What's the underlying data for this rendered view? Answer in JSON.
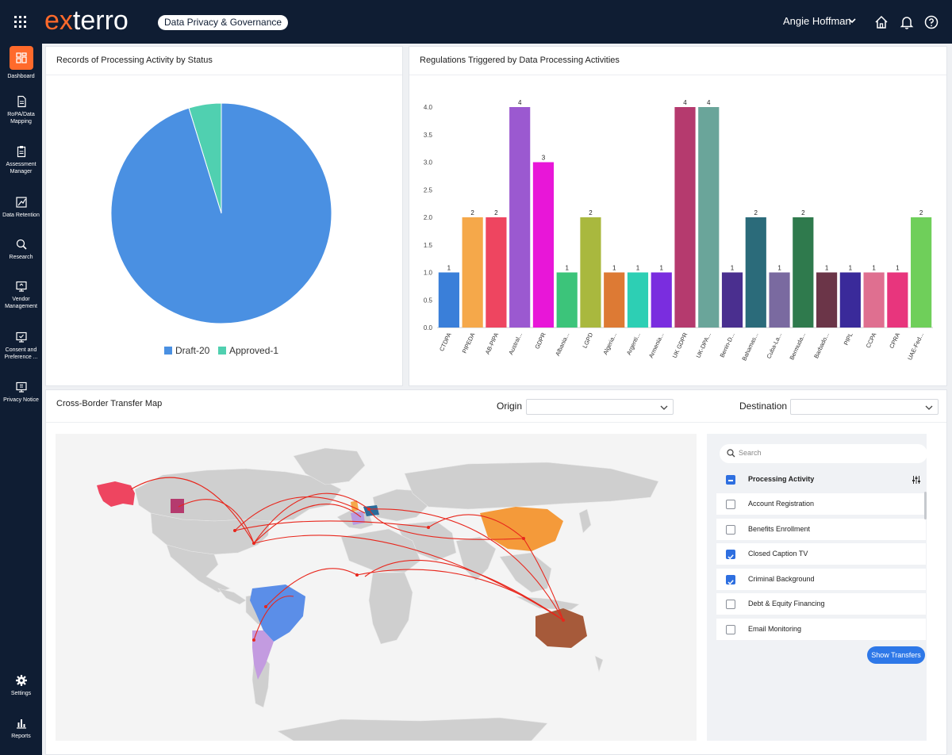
{
  "app": {
    "logo_ex": "ex",
    "logo_rest": "terro",
    "product": "Data Privacy & Governance",
    "user": "Angie Hoffman"
  },
  "sidebar": {
    "items": [
      {
        "label": "Dashboard",
        "icon": "dashboard-icon"
      },
      {
        "label": "RoPA/Data Mapping",
        "icon": "document-icon"
      },
      {
        "label": "Assessment Manager",
        "icon": "clipboard-icon"
      },
      {
        "label": "Data Retention",
        "icon": "retention-icon"
      },
      {
        "label": "Research",
        "icon": "research-icon"
      },
      {
        "label": "Vendor Management",
        "icon": "vendor-icon"
      },
      {
        "label": "Consent and Preference ...",
        "icon": "consent-icon"
      },
      {
        "label": "Privacy Notice",
        "icon": "notice-icon"
      },
      {
        "label": "Settings",
        "icon": "gear-icon"
      },
      {
        "label": "Reports",
        "icon": "bar-chart-icon"
      }
    ],
    "active_color": "#ff6a2b"
  },
  "pie_panel": {
    "title": "Records of Processing Activity by Status",
    "legend": [
      {
        "label": "Draft-20",
        "color": "#4a90e2"
      },
      {
        "label": "Approved-1",
        "color": "#50d0b0"
      }
    ]
  },
  "bar_panel": {
    "title": "Regulations Triggered by Data Processing Activities"
  },
  "chart_data": [
    {
      "type": "pie",
      "title": "Records of Processing Activity by Status",
      "labels": [
        "Draft-20",
        "Approved-1"
      ],
      "values": [
        20,
        1
      ],
      "colors": [
        "#4a90e2",
        "#50d0b0"
      ]
    },
    {
      "type": "bar",
      "title": "Regulations Triggered by Data Processing Activities",
      "categories": [
        "CTDPA",
        "PIPEDA",
        "AB-PIPA",
        "Austral...",
        "GDPR",
        "Albania...",
        "LGPD",
        "Algeria...",
        "Argenti...",
        "Armenia...",
        "UK GDPR",
        "UK-DPA...",
        "Benin-D...",
        "Bahamas...",
        "Cuba-La...",
        "Bermuda...",
        "Barbado...",
        "PIPL",
        "CCPA",
        "CPRA",
        "UAE-Fed..."
      ],
      "values": [
        1,
        2,
        2,
        4,
        3,
        1,
        2,
        1,
        1,
        1,
        4,
        4,
        1,
        2,
        1,
        2,
        1,
        1,
        1,
        1,
        2
      ],
      "colors": [
        "#3a7fd9",
        "#f5a84a",
        "#ee4560",
        "#9b59d0",
        "#e816d8",
        "#3cc47a",
        "#a9b83e",
        "#dd7a34",
        "#2dcfb4",
        "#7a2ddf",
        "#b53a6e",
        "#6aa59a",
        "#4a2f8f",
        "#2b6b7a",
        "#7a6aa0",
        "#2f7a4d",
        "#6b3548",
        "#3a2a9a",
        "#df6f90",
        "#e8357d",
        "#6fcf5a"
      ],
      "yticks": [
        "0.0",
        "0.5",
        "1.0",
        "1.5",
        "2.0",
        "2.5",
        "3.0",
        "3.5",
        "4.0"
      ],
      "ylim": [
        0,
        4
      ]
    }
  ],
  "map_panel": {
    "title": "Cross-Border Transfer Map",
    "origin_label": "Origin",
    "destination_label": "Destination",
    "search_placeholder": "Search",
    "list_header": "Processing Activity",
    "activities": [
      {
        "label": "Account Registration",
        "checked": false
      },
      {
        "label": "Benefits Enrollment",
        "checked": false
      },
      {
        "label": "Closed Caption TV",
        "checked": true
      },
      {
        "label": "Criminal Background",
        "checked": true
      },
      {
        "label": "Debt & Equity Financing",
        "checked": false
      },
      {
        "label": "Email Monitoring",
        "checked": false
      }
    ],
    "show_button": "Show Transfers",
    "arc_color": "#e8261c"
  }
}
